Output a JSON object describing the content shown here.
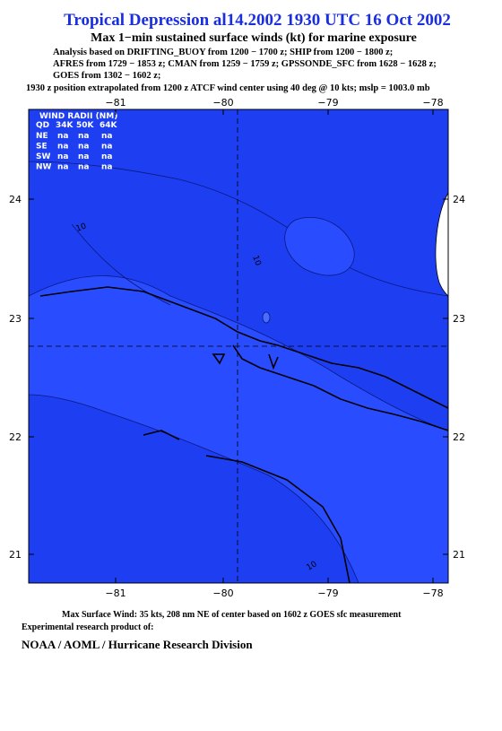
{
  "header": {
    "title": "Tropical Depression al14.2002 1930 UTC 16 Oct 2002",
    "subtitle": "Max 1−min sustained surface winds (kt) for marine exposure",
    "analysis_lines": [
      "Analysis based on  DRIFTING_BUOY from 1200 − 1700 z;  SHIP from 1200 − 1800 z;",
      "AFRES from 1729 − 1853 z;  CMAN from 1259 − 1759 z;  GPSSONDE_SFC from 1628 − 1628 z;",
      "GOES from 1302 − 1602 z;",
      "1930 z position extrapolated from 1200 z ATCF wind center using 40 deg @ 10 kts; mslp = 1003.0 mb"
    ]
  },
  "map": {
    "x_ticks": [
      "−81",
      "−80",
      "−79",
      "−78"
    ],
    "y_ticks": [
      "24",
      "23",
      "22",
      "21"
    ],
    "contour_labels": [
      "10",
      "10",
      "10"
    ],
    "wind_radii": {
      "title": "WIND RADII (NM)",
      "columns": [
        "QD",
        "34K",
        "50K",
        "64K"
      ],
      "rows": [
        [
          "NE",
          "na",
          "na",
          "na"
        ],
        [
          "SE",
          "na",
          "na",
          "na"
        ],
        [
          "SW",
          "na",
          "na",
          "na"
        ],
        [
          "NW",
          "na",
          "na",
          "na"
        ]
      ]
    }
  },
  "footer": {
    "max_wind": "Max Surface Wind: 35 kts, 208 nm NE of center based on 1602 z GOES sfc measurement",
    "product": "Experimental research product of:",
    "organization": "NOAA / AOML / Hurricane Research Division"
  }
}
